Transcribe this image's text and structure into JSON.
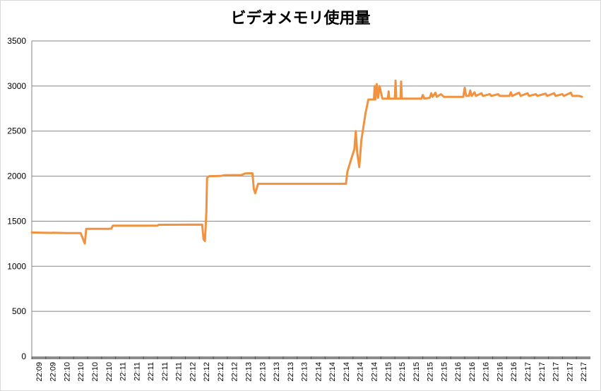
{
  "chart_data": {
    "type": "line",
    "title": "ビデオメモリ使用量",
    "xlabel": "",
    "ylabel": "",
    "ylim": [
      0,
      3500
    ],
    "yticks": [
      0,
      500,
      1000,
      1500,
      2000,
      2500,
      3000,
      3500
    ],
    "grid": true,
    "legend": "none",
    "line_color": "#F0923F",
    "x_tick_labels": [
      "22:09",
      "22:09",
      "22:10",
      "22:10",
      "22:10",
      "22:10",
      "22:11",
      "22:11",
      "22:11",
      "22:11",
      "22:11",
      "22:12",
      "22:12",
      "22:12",
      "22:12",
      "22:13",
      "22:13",
      "22:13",
      "22:13",
      "22:13",
      "22:14",
      "22:14",
      "22:14",
      "22:14",
      "22:14",
      "22:15",
      "22:15",
      "22:15",
      "22:15",
      "22:15",
      "22:16",
      "22:16",
      "22:16",
      "22:16",
      "22:16",
      "22:17",
      "22:17",
      "22:17",
      "22:17",
      "22:17"
    ],
    "series": [
      {
        "values": [
          [
            0,
            1375
          ],
          [
            1.4,
            1370
          ],
          [
            1.5,
            1372
          ],
          [
            2.0,
            1370
          ],
          [
            2.5,
            1368
          ],
          [
            3.5,
            1368
          ],
          [
            3.8,
            1252
          ],
          [
            3.9,
            1415
          ],
          [
            5.5,
            1415
          ],
          [
            5.7,
            1418
          ],
          [
            5.8,
            1450
          ],
          [
            8.5,
            1450
          ],
          [
            9.0,
            1452
          ],
          [
            9.1,
            1460
          ],
          [
            12.2,
            1462
          ],
          [
            12.3,
            1300
          ],
          [
            12.4,
            1280
          ],
          [
            12.5,
            1600
          ],
          [
            12.55,
            1980
          ],
          [
            12.7,
            2000
          ],
          [
            13.5,
            2002
          ],
          [
            13.8,
            2010
          ],
          [
            15.0,
            2012
          ],
          [
            15.3,
            2030
          ],
          [
            15.8,
            2032
          ],
          [
            15.9,
            1860
          ],
          [
            16.0,
            1810
          ],
          [
            16.1,
            1860
          ],
          [
            16.2,
            1915
          ],
          [
            22.5,
            1915
          ],
          [
            22.6,
            2050
          ],
          [
            22.9,
            2200
          ],
          [
            23.1,
            2300
          ],
          [
            23.2,
            2500
          ],
          [
            23.3,
            2260
          ],
          [
            23.45,
            2100
          ],
          [
            23.6,
            2400
          ],
          [
            23.9,
            2700
          ],
          [
            24.1,
            2850
          ],
          [
            24.5,
            2850
          ],
          [
            24.55,
            3000
          ],
          [
            24.6,
            2850
          ],
          [
            24.7,
            3020
          ],
          [
            24.8,
            2870
          ],
          [
            24.9,
            3000
          ],
          [
            25.1,
            2860
          ],
          [
            25.5,
            2860
          ],
          [
            25.55,
            2940
          ],
          [
            25.6,
            2860
          ],
          [
            26.0,
            2860
          ],
          [
            26.05,
            3060
          ],
          [
            26.1,
            2860
          ],
          [
            26.4,
            2860
          ],
          [
            26.45,
            3050
          ],
          [
            26.5,
            2860
          ],
          [
            27.9,
            2860
          ],
          [
            28.0,
            2900
          ],
          [
            28.1,
            2860
          ],
          [
            28.5,
            2870
          ],
          [
            28.6,
            2920
          ],
          [
            28.7,
            2880
          ],
          [
            28.9,
            2925
          ],
          [
            29.0,
            2880
          ],
          [
            29.3,
            2910
          ],
          [
            29.5,
            2880
          ],
          [
            30.9,
            2880
          ],
          [
            31.0,
            2980
          ],
          [
            31.1,
            2890
          ],
          [
            31.3,
            2890
          ],
          [
            31.4,
            2950
          ],
          [
            31.5,
            2890
          ],
          [
            31.7,
            2930
          ],
          [
            31.8,
            2890
          ],
          [
            32.2,
            2920
          ],
          [
            32.3,
            2890
          ],
          [
            32.8,
            2910
          ],
          [
            32.9,
            2890
          ],
          [
            33.4,
            2910
          ],
          [
            33.5,
            2890
          ],
          [
            34.2,
            2890
          ],
          [
            34.3,
            2930
          ],
          [
            34.4,
            2890
          ],
          [
            34.9,
            2925
          ],
          [
            35.0,
            2890
          ],
          [
            35.5,
            2920
          ],
          [
            35.6,
            2890
          ],
          [
            36.1,
            2910
          ],
          [
            36.2,
            2890
          ],
          [
            36.8,
            2915
          ],
          [
            36.9,
            2890
          ],
          [
            37.4,
            2920
          ],
          [
            37.5,
            2890
          ],
          [
            38.0,
            2910
          ],
          [
            38.1,
            2890
          ],
          [
            38.6,
            2925
          ],
          [
            38.7,
            2890
          ],
          [
            39.2,
            2890
          ],
          [
            39.4,
            2880
          ]
        ]
      }
    ]
  }
}
